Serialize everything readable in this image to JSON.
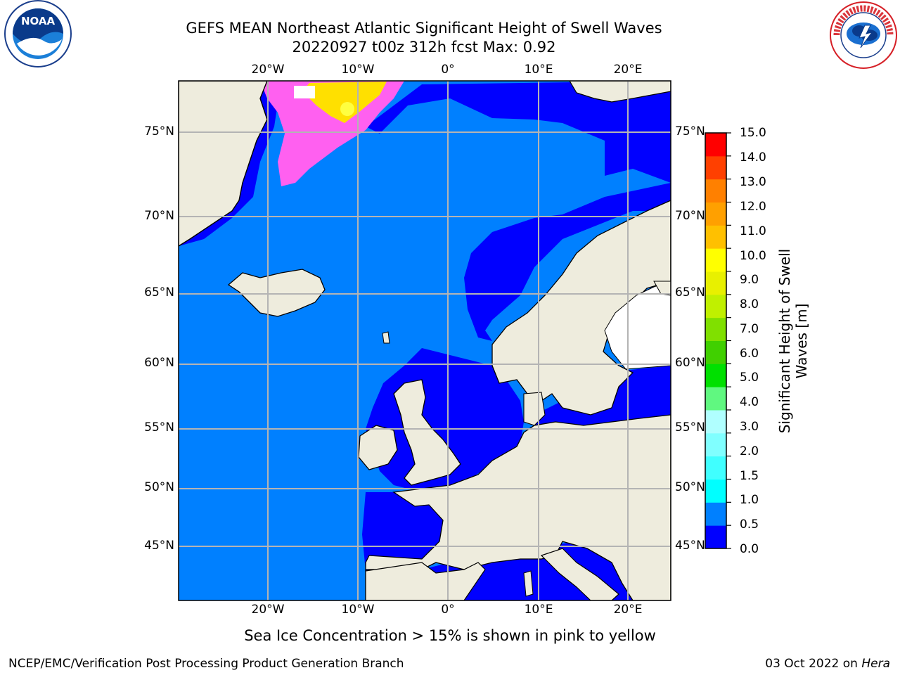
{
  "header": {
    "title_line1": "GEFS MEAN Northeast Atlantic Significant Height of Swell Waves",
    "title_line2": "20220927 t00z 312h fcst   Max: 0.92"
  },
  "logos": {
    "left": {
      "name": "noaa-logo",
      "text": "NOAA"
    },
    "right": {
      "name": "nws-logo",
      "text": "NATIONAL WEATHER SERVICE"
    }
  },
  "map": {
    "lon_labels": [
      "20°W",
      "10°W",
      "0°",
      "10°E",
      "20°E"
    ],
    "lat_labels": [
      "75°N",
      "70°N",
      "65°N",
      "60°N",
      "55°N",
      "50°N",
      "45°N"
    ],
    "colors": {
      "land": "#eeecdd",
      "ocean_low": "#0000ff",
      "ocean_mid": "#0080ff",
      "sea_ice_pink": "#ff60f0",
      "sea_ice_yellow": "#ffe000",
      "grid": "#b4b4b4"
    }
  },
  "colorbar": {
    "label": "Significant Height of Swell Waves [m]",
    "ticks": [
      "15.0",
      "14.0",
      "13.0",
      "12.0",
      "11.0",
      "10.0",
      "9.0",
      "8.0",
      "7.0",
      "6.0",
      "5.0",
      "4.0",
      "3.0",
      "2.0",
      "1.5",
      "1.0",
      "0.5",
      "0.0"
    ],
    "colors": [
      "#0000ff",
      "#0080ff",
      "#00ffff",
      "#40ffff",
      "#80ffff",
      "#b0ffff",
      "#60f880",
      "#00e000",
      "#40d000",
      "#80e000",
      "#c0f000",
      "#e8f000",
      "#ffff00",
      "#ffc000",
      "#ffa000",
      "#ff8000",
      "#ff4000",
      "#ff0000"
    ]
  },
  "notes": {
    "sea_ice": "Sea Ice Concentration > 15% is shown in pink to yellow"
  },
  "footer": {
    "left": "NCEP/EMC/Verification Post Processing Product Generation Branch",
    "right_date": "03 Oct 2022 on ",
    "right_host": "Hera"
  }
}
